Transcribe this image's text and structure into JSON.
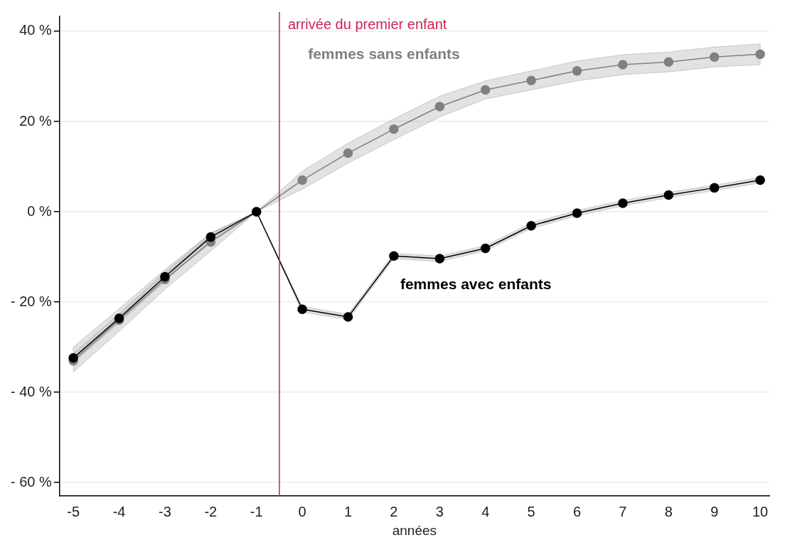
{
  "chart_data": {
    "type": "line",
    "xlabel": "années",
    "x": [
      -5,
      -4,
      -3,
      -2,
      -1,
      0,
      1,
      2,
      3,
      4,
      5,
      6,
      7,
      8,
      9,
      10
    ],
    "series": [
      {
        "name": "femmes sans enfants",
        "color": "#808080",
        "values": [
          -33,
          -24,
          -15,
          -6.7,
          0,
          7,
          13,
          18.3,
          23.3,
          27,
          29.1,
          31.2,
          32.6,
          33.2,
          34.3,
          34.9
        ],
        "lower": [
          -35.5,
          -26.5,
          -17.2,
          -8.7,
          0,
          5,
          10.8,
          16,
          21,
          25,
          27,
          29,
          30.4,
          31,
          32.1,
          32.6
        ],
        "upper": [
          -30,
          -21.5,
          -12.8,
          -4.7,
          0,
          9,
          15.2,
          20.6,
          25.6,
          29,
          31.2,
          33.4,
          34.8,
          35.4,
          36.5,
          37.2
        ]
      },
      {
        "name": "femmes avec enfants",
        "color": "#000000",
        "values": [
          -32.4,
          -23.6,
          -14.4,
          -5.6,
          0,
          -21.6,
          -23.3,
          -9.8,
          -10.4,
          -8.1,
          -3.1,
          -0.3,
          1.9,
          3.7,
          5.3,
          7
        ],
        "lower": [
          -33.4,
          -24.6,
          -15.4,
          -6.4,
          0,
          -22.2,
          -23.9,
          -10.4,
          -11,
          -8.7,
          -3.7,
          -0.9,
          1.3,
          3.1,
          4.7,
          6.4
        ],
        "upper": [
          -31.4,
          -22.6,
          -13.4,
          -4.8,
          0,
          -21,
          -22.7,
          -9.2,
          -9.8,
          -7.5,
          -2.5,
          0.3,
          2.5,
          4.3,
          5.9,
          7.6
        ]
      }
    ],
    "xlim": [
      -5.3,
      10.2
    ],
    "xticks": [
      -5,
      -4,
      -3,
      -2,
      -1,
      0,
      1,
      2,
      3,
      4,
      5,
      6,
      7,
      8,
      9,
      10
    ],
    "ylim": [
      -63,
      43.3
    ],
    "yticks": [
      {
        "value": -60,
        "label": "- 60 %"
      },
      {
        "value": -40,
        "label": "- 40 %"
      },
      {
        "value": -20,
        "label": "- 20 %"
      },
      {
        "value": 0,
        "label": "0 %"
      },
      {
        "value": 20,
        "label": "20 %"
      },
      {
        "value": 40,
        "label": "40 %"
      }
    ],
    "grid": "y",
    "marker": "circle",
    "line_style": "solid",
    "legend": false,
    "ref_lines": [
      {
        "axis": "x",
        "value": -0.5,
        "label": "arrivée du premier enfant",
        "color": "#d0204f"
      }
    ]
  }
}
